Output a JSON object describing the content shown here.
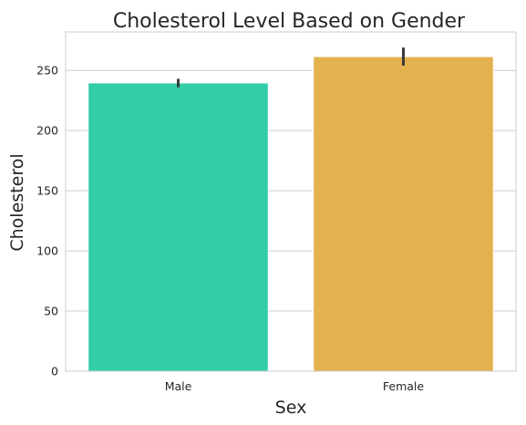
{
  "chart_data": {
    "type": "bar",
    "title": "Cholesterol Level Based on Gender",
    "xlabel": "Sex",
    "ylabel": "Cholesterol",
    "categories": [
      "Male",
      "Female"
    ],
    "values": [
      239.6,
      261.5
    ],
    "error_bars": [
      {
        "low": 236,
        "high": 243
      },
      {
        "low": 254,
        "high": 269
      }
    ],
    "colors": [
      "#33cca8",
      "#e3b24e"
    ],
    "error_bar_color": "#3b3b3b",
    "ylim": [
      0,
      282
    ],
    "yticks": [
      0,
      50,
      100,
      150,
      200,
      250
    ],
    "grid": "horizontal",
    "background": "#ffffff",
    "grid_color": "#cccccc",
    "spine_color": "#cccccc",
    "text_color": "#262626"
  }
}
